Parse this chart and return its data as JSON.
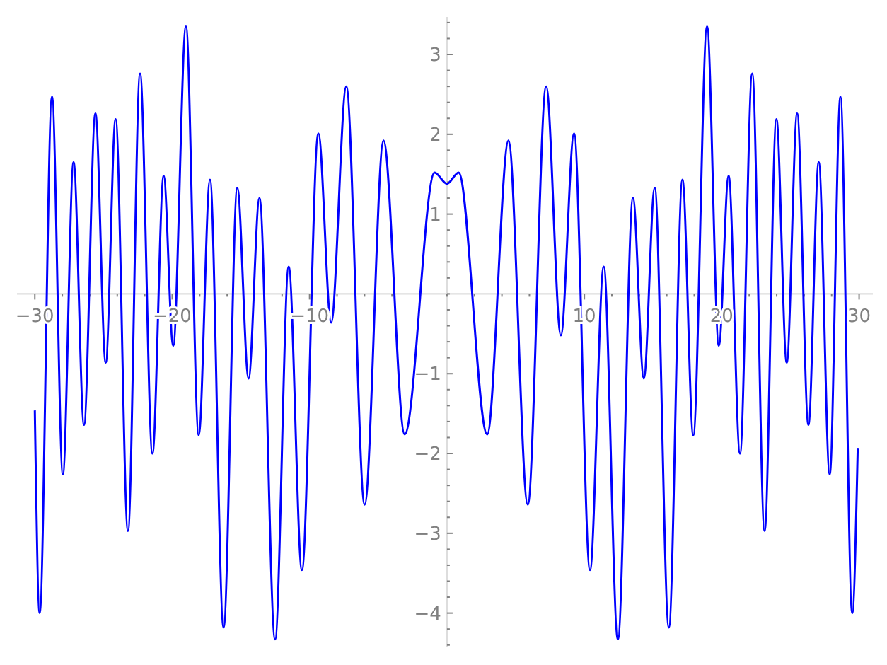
{
  "chart_data": {
    "type": "line",
    "grid": false,
    "marker": "none",
    "line_style": "solid",
    "xlim": [
      -31.3,
      31.0
    ],
    "ylim": [
      -4.42,
      3.47
    ],
    "xticks": [
      {
        "value": -30,
        "label": "−30"
      },
      {
        "value": -28,
        "label": null
      },
      {
        "value": -26,
        "label": null
      },
      {
        "value": -24,
        "label": null
      },
      {
        "value": -22,
        "label": null
      },
      {
        "value": -20,
        "label": "−20"
      },
      {
        "value": -18,
        "label": null
      },
      {
        "value": -16,
        "label": null
      },
      {
        "value": -14,
        "label": null
      },
      {
        "value": -12,
        "label": null
      },
      {
        "value": -10,
        "label": "−10"
      },
      {
        "value": -8,
        "label": null
      },
      {
        "value": -6,
        "label": null
      },
      {
        "value": -4,
        "label": null
      },
      {
        "value": -2,
        "label": null
      },
      {
        "value": 0,
        "label": null
      },
      {
        "value": 2,
        "label": null
      },
      {
        "value": 4,
        "label": null
      },
      {
        "value": 6,
        "label": null
      },
      {
        "value": 8,
        "label": null
      },
      10,
      {
        "value": 12,
        "label": null
      },
      {
        "value": 14,
        "label": null
      },
      {
        "value": 16,
        "label": null
      },
      {
        "value": 18,
        "label": null
      },
      20,
      {
        "value": 22,
        "label": null
      },
      {
        "value": 24,
        "label": null
      },
      {
        "value": 26,
        "label": null
      },
      {
        "value": 28,
        "label": null
      },
      30
    ],
    "yticks": [
      {
        "value": -4.4,
        "label": null
      },
      {
        "value": -4.2,
        "label": null
      },
      {
        "value": -4,
        "label": "−4"
      },
      {
        "value": -3.8,
        "label": null
      },
      {
        "value": -3.6,
        "label": null
      },
      {
        "value": -3.4,
        "label": null
      },
      {
        "value": -3.2,
        "label": null
      },
      {
        "value": -3,
        "label": "−3"
      },
      {
        "value": -2.8,
        "label": null
      },
      {
        "value": -2.6,
        "label": null
      },
      {
        "value": -2.4,
        "label": null
      },
      {
        "value": -2.2,
        "label": null
      },
      {
        "value": -2,
        "label": "−2"
      },
      {
        "value": -1.8,
        "label": null
      },
      {
        "value": -1.6,
        "label": null
      },
      {
        "value": -1.4,
        "label": null
      },
      {
        "value": -1.2,
        "label": null
      },
      {
        "value": -1,
        "label": "−1"
      },
      {
        "value": -0.8,
        "label": null
      },
      {
        "value": -0.6,
        "label": null
      },
      {
        "value": -0.4,
        "label": null
      },
      {
        "value": -0.2,
        "label": null
      },
      {
        "value": 0,
        "label": null
      },
      {
        "value": 0.2,
        "label": null
      },
      {
        "value": 0.4,
        "label": null
      },
      {
        "value": 0.6,
        "label": null
      },
      {
        "value": 0.8,
        "label": null
      },
      1,
      {
        "value": 1.2,
        "label": null
      },
      {
        "value": 1.4,
        "label": null
      },
      {
        "value": 1.6,
        "label": null
      },
      {
        "value": 1.8,
        "label": null
      },
      2,
      {
        "value": 2.2,
        "label": null
      },
      {
        "value": 2.4,
        "label": null
      },
      {
        "value": 2.6,
        "label": null
      },
      {
        "value": 2.8,
        "label": null
      },
      3,
      {
        "value": 3.2,
        "label": null
      },
      {
        "value": 3.4,
        "label": null
      }
    ],
    "series": [
      {
        "color": "#0000ff",
        "x": [
          -30,
          -29.65,
          -28.75,
          -27.96,
          -27.18,
          -26.42,
          -25.59,
          -24.84,
          -24.12,
          -23.22,
          -22.34,
          -21.44,
          -20.62,
          -19.93,
          -19.0,
          -18.07,
          -17.25,
          -16.26,
          -15.26,
          -14.44,
          -13.65,
          -12.51,
          -11.52,
          -10.56,
          -9.36,
          -8.43,
          -7.33,
          -5.99,
          -4.62,
          -3.08,
          -0.9,
          0,
          0.85,
          2.93,
          4.48,
          5.88,
          7.22,
          8.29,
          9.25,
          10.41,
          11.41,
          12.44,
          13.54,
          14.33,
          15.12,
          16.15,
          17.14,
          17.93,
          18.93,
          19.79,
          20.5,
          21.33,
          22.22,
          23.12,
          23.98,
          24.73,
          25.49,
          26.31,
          27.06,
          27.86,
          28.64,
          29.5,
          29.9
        ],
        "values": [
          -1.46,
          -4.0,
          2.47,
          -2.26,
          1.65,
          -1.64,
          2.26,
          -0.86,
          2.19,
          -2.97,
          2.76,
          -2.0,
          1.48,
          -0.65,
          3.35,
          -1.77,
          1.43,
          -4.18,
          1.33,
          -1.06,
          1.2,
          -4.33,
          0.34,
          -3.46,
          2.01,
          -0.36,
          2.6,
          -2.64,
          1.92,
          -1.76,
          1.52,
          1.38,
          1.52,
          -1.76,
          1.92,
          -2.64,
          2.6,
          -0.52,
          2.01,
          -3.46,
          0.34,
          -4.33,
          1.2,
          -1.06,
          1.33,
          -4.18,
          1.43,
          -1.77,
          3.35,
          -0.65,
          1.48,
          -2.0,
          2.76,
          -2.97,
          2.19,
          -0.86,
          2.26,
          -1.64,
          1.65,
          -2.26,
          2.47,
          -4.0,
          -1.93
        ]
      }
    ]
  }
}
